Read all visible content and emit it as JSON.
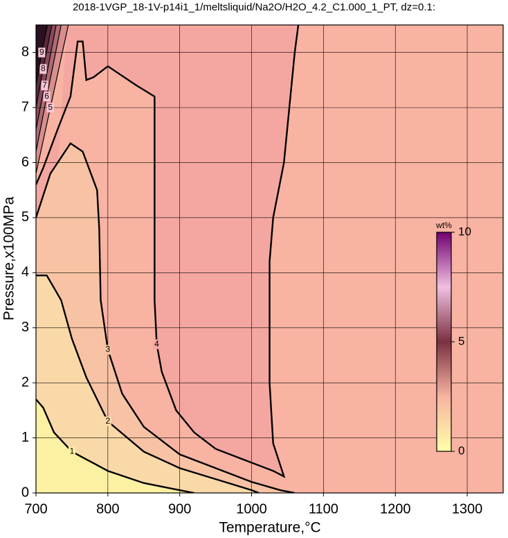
{
  "chart_data": {
    "type": "contour",
    "title": "2018-1VGP_18-1V-p14i1_1/meltsliquid/Na2O/H2O_4.2_C1.000_1_PT, dz=0.1:",
    "x_label": "Temperature,°C",
    "y_label": "Pressure,x100MPa",
    "xlim": [
      700,
      1350
    ],
    "ylim": [
      0,
      8.5
    ],
    "xticks": [
      700,
      800,
      900,
      1000,
      1100,
      1200,
      1300
    ],
    "yticks": [
      0,
      1,
      2,
      3,
      4,
      5,
      6,
      7,
      8
    ],
    "grid": true,
    "background": "#f8b3a2",
    "contours": [
      {
        "level": 4,
        "color": "#f4a7a0",
        "x": [
          700,
          710,
          730,
          748,
          758,
          765,
          770,
          780,
          800,
          840,
          865,
          865,
          865,
          868,
          875,
          895,
          920,
          950,
          990,
          1030,
          1045,
          1030,
          1025,
          1025,
          1030,
          1045,
          1060,
          1065
        ],
        "y": [
          5.6,
          5.9,
          6.6,
          7.2,
          8.2,
          8.2,
          7.5,
          7.55,
          7.75,
          7.4,
          7.2,
          5.0,
          3.5,
          2.7,
          2.2,
          1.5,
          1.1,
          0.8,
          0.6,
          0.4,
          0.3,
          0.9,
          2.0,
          4.2,
          5.0,
          6.0,
          8.0,
          8.5
        ]
      },
      {
        "level": 3,
        "color": "#f7c3a4",
        "x": [
          700,
          720,
          748,
          765,
          785,
          788,
          790,
          800,
          820,
          850,
          900,
          950,
          1000,
          1040,
          1060
        ],
        "y": [
          5.0,
          5.8,
          6.35,
          6.2,
          5.5,
          4.8,
          3.5,
          2.6,
          1.8,
          1.2,
          0.7,
          0.45,
          0.2,
          0.05,
          0
        ]
      },
      {
        "level": 2,
        "color": "#f9d9a8",
        "x": [
          700,
          715,
          735,
          750,
          770,
          800,
          850,
          900,
          950,
          1000,
          1010
        ],
        "y": [
          3.95,
          3.95,
          3.5,
          2.8,
          2.1,
          1.3,
          0.75,
          0.45,
          0.25,
          0.05,
          0
        ]
      },
      {
        "level": 1,
        "color": "#fcf0a2",
        "x": [
          700,
          710,
          725,
          750,
          800,
          850,
          900,
          920
        ],
        "y": [
          1.7,
          1.55,
          1.1,
          0.75,
          0.4,
          0.18,
          0.05,
          0
        ]
      },
      {
        "level": 5,
        "color": "#d98e8e",
        "x": [
          700,
          720,
          745
        ],
        "y": [
          5.8,
          7.0,
          8.5
        ]
      },
      {
        "level": 6,
        "color": "#b06a72",
        "x": [
          700,
          715,
          735
        ],
        "y": [
          6.2,
          7.2,
          8.5
        ]
      },
      {
        "level": 7,
        "color": "#8a4a5a",
        "x": [
          700,
          712,
          728
        ],
        "y": [
          6.6,
          7.4,
          8.5
        ]
      },
      {
        "level": 8,
        "color": "#5a2a3c",
        "x": [
          700,
          710,
          722
        ],
        "y": [
          7.0,
          7.7,
          8.5
        ]
      },
      {
        "level": 9,
        "color": "#2a1020",
        "x": [
          700,
          708,
          716
        ],
        "y": [
          7.4,
          8.0,
          8.5
        ]
      }
    ],
    "colorbar": {
      "label": "wt%",
      "lim": [
        0,
        10
      ],
      "ticks": [
        0,
        5,
        10
      ],
      "colors": [
        "#ffffa8",
        "#f8b3a2",
        "#7a3040",
        "#f0c0e0",
        "#700070"
      ]
    }
  }
}
